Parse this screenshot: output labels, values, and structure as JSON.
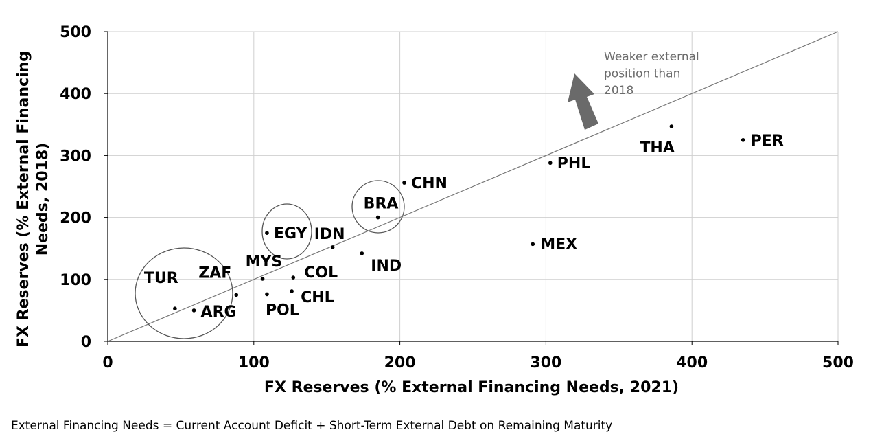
{
  "chart_data": {
    "type": "scatter",
    "xlabel": "FX Reserves (% External Financing Needs, 2021)",
    "ylabel": "FX Reserves (% External Financing Needs, 2018)",
    "xlim": [
      0,
      500
    ],
    "ylim": [
      0,
      500
    ],
    "xticks": [
      "0",
      "100",
      "200",
      "300",
      "400",
      "500"
    ],
    "yticks": [
      "0",
      "100",
      "200",
      "300",
      "400",
      "500"
    ],
    "grid": true,
    "reference_line": "y = x",
    "points": [
      {
        "label": "TUR",
        "x": 46,
        "y": 53
      },
      {
        "label": "ARG",
        "x": 59,
        "y": 50
      },
      {
        "label": "ZAF",
        "x": 88,
        "y": 75
      },
      {
        "label": "MYS",
        "x": 106,
        "y": 101
      },
      {
        "label": "POL",
        "x": 109,
        "y": 76
      },
      {
        "label": "EGY",
        "x": 109,
        "y": 175
      },
      {
        "label": "COL",
        "x": 127,
        "y": 103
      },
      {
        "label": "CHL",
        "x": 126,
        "y": 81
      },
      {
        "label": "IDN",
        "x": 154,
        "y": 152
      },
      {
        "label": "IND",
        "x": 174,
        "y": 142
      },
      {
        "label": "BRA",
        "x": 185,
        "y": 200
      },
      {
        "label": "CHN",
        "x": 203,
        "y": 256
      },
      {
        "label": "MEX",
        "x": 291,
        "y": 157
      },
      {
        "label": "PHL",
        "x": 303,
        "y": 288
      },
      {
        "label": "THA",
        "x": 386,
        "y": 347
      },
      {
        "label": "PER",
        "x": 435,
        "y": 325
      }
    ],
    "annotation": {
      "lines": [
        "Weaker external",
        "position than",
        "2018"
      ],
      "color": "#6b6b6b"
    },
    "circled_groups": [
      "TUR/ARG/ZAF",
      "EGY",
      "BRA"
    ]
  },
  "footnote": "External Financing Needs = Current Account Deficit + Short-Term External Debt on Remaining Maturity"
}
